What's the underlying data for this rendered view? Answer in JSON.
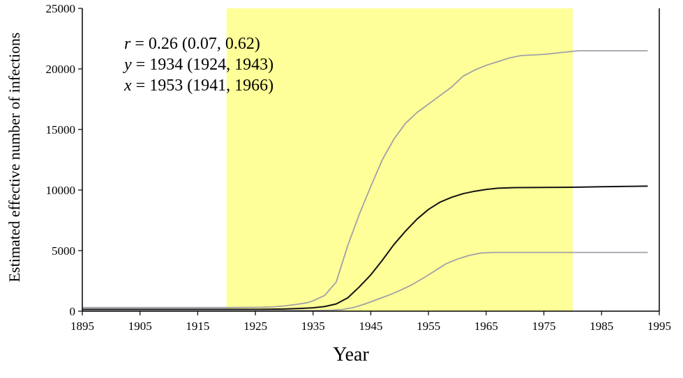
{
  "chart_data": {
    "type": "line",
    "title": "",
    "xlabel": "Year",
    "ylabel": "Estimated effective number of infections",
    "xlim": [
      1895,
      1995
    ],
    "ylim": [
      0,
      25000
    ],
    "x_ticks": [
      1895,
      1905,
      1915,
      1925,
      1935,
      1945,
      1955,
      1965,
      1975,
      1985,
      1995
    ],
    "y_ticks": [
      0,
      5000,
      10000,
      15000,
      20000,
      25000
    ],
    "grid": false,
    "legend": "none",
    "shaded_region": {
      "x_start": 1920,
      "x_end": 1980,
      "color": "#ffff99"
    },
    "annotations": [
      {
        "var": "r",
        "text": " = 0.26 (0.07, 0.62)"
      },
      {
        "var": "y",
        "text": " = 1934 (1924, 1943)"
      },
      {
        "var": "x",
        "text": " = 1953 (1941, 1966)"
      }
    ],
    "series": [
      {
        "role": "upper",
        "color": "#a0a0a8",
        "x": [
          1895,
          1920,
          1926,
          1928,
          1930,
          1932,
          1934,
          1935,
          1937,
          1939,
          1941,
          1943,
          1945,
          1947,
          1949,
          1951,
          1953,
          1955,
          1957,
          1959,
          1961,
          1963,
          1965,
          1967,
          1969,
          1971,
          1973,
          1975,
          1977,
          1979,
          1981,
          1985,
          1993
        ],
        "y": [
          300,
          300,
          320,
          350,
          430,
          550,
          700,
          850,
          1300,
          2400,
          5400,
          8000,
          10300,
          12500,
          14200,
          15500,
          16400,
          17100,
          17800,
          18500,
          19400,
          19900,
          20300,
          20600,
          20900,
          21100,
          21150,
          21200,
          21300,
          21400,
          21500,
          21500,
          21500
        ]
      },
      {
        "role": "median",
        "color": "#111111",
        "x": [
          1895,
          1925,
          1930,
          1933,
          1935,
          1937,
          1939,
          1941,
          1943,
          1945,
          1947,
          1949,
          1951,
          1953,
          1955,
          1957,
          1959,
          1961,
          1963,
          1965,
          1967,
          1970,
          1975,
          1980,
          1985,
          1993
        ],
        "y": [
          150,
          150,
          180,
          230,
          280,
          380,
          600,
          1100,
          2000,
          3000,
          4200,
          5500,
          6600,
          7600,
          8400,
          9000,
          9400,
          9700,
          9900,
          10050,
          10150,
          10200,
          10220,
          10230,
          10270,
          10320
        ]
      },
      {
        "role": "lower",
        "color": "#a0a0a8",
        "x": [
          1895,
          1935,
          1938,
          1940,
          1942,
          1944,
          1946,
          1948,
          1950,
          1952,
          1954,
          1956,
          1958,
          1960,
          1962,
          1964,
          1966,
          1970,
          1980,
          1993
        ],
        "y": [
          60,
          60,
          80,
          130,
          300,
          600,
          950,
          1300,
          1700,
          2150,
          2700,
          3300,
          3900,
          4300,
          4600,
          4800,
          4850,
          4850,
          4850,
          4850
        ]
      }
    ]
  }
}
